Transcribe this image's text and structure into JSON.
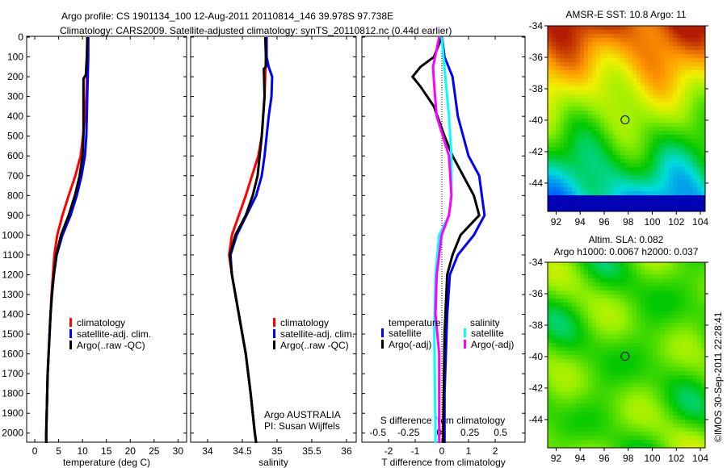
{
  "title_line1": "Argo profile: CS 1901134_100 12-Aug-2011 20110814_146 39.978S 97.738E",
  "title_line2": "Climatology: CARS2009. Satellite-adjusted climatology: synTS_20110812.nc (0.44d earlier)",
  "colors": {
    "climatology": "#ff0000",
    "satellite": "#0000ff",
    "argo": "#000000",
    "sal_satellite": "#00ffff",
    "sal_argo": "#ff00ff"
  },
  "chart_data": [
    {
      "type": "line",
      "name": "temperature",
      "xlabel": "temperature (deg C)",
      "xlim": [
        -1.7,
        31.8
      ],
      "ylim": [
        2050,
        0
      ],
      "xticks": [
        0,
        5,
        10,
        15,
        20,
        25,
        30
      ],
      "yticks": [
        0,
        100,
        200,
        300,
        400,
        500,
        600,
        700,
        800,
        900,
        1000,
        1100,
        1200,
        1300,
        1400,
        1500,
        1600,
        1700,
        1800,
        1900,
        2000
      ],
      "legend": [
        "climatology",
        "satellite-adj. clim.",
        "Argo(..raw -QC)"
      ],
      "series": [
        {
          "name": "climatology",
          "color": "climatology",
          "depth": [
            0,
            100,
            200,
            300,
            400,
            500,
            600,
            700,
            800,
            900,
            1000,
            1100,
            1200,
            1300,
            1400,
            1500,
            1600,
            1700,
            1800,
            1900,
            2000,
            2050
          ],
          "values": [
            11,
            11,
            10.9,
            10.8,
            10.5,
            10.1,
            9.6,
            8.5,
            7.1,
            5.8,
            4.7,
            4.1,
            3.8,
            3.5,
            3.3,
            3.1,
            2.9,
            2.7,
            2.6,
            2.5,
            2.4,
            2.4
          ]
        },
        {
          "name": "satellite-adj. clim.",
          "color": "satellite",
          "depth": [
            0,
            100,
            200,
            300,
            400,
            500,
            600,
            700,
            800,
            900,
            1000,
            1100,
            1200,
            1300,
            1400,
            1500,
            1600,
            1700,
            1800,
            1900,
            2000,
            2050
          ],
          "values": [
            11.2,
            11.2,
            11.1,
            11,
            10.9,
            10.8,
            10.5,
            9.8,
            8.8,
            7.5,
            5.8,
            4.6,
            4,
            3.6,
            3.3,
            3.1,
            2.9,
            2.7,
            2.6,
            2.5,
            2.4,
            2.4
          ]
        },
        {
          "name": "Argo(..raw -QC)",
          "color": "argo",
          "depth": [
            0,
            100,
            190,
            210,
            300,
            400,
            500,
            600,
            700,
            800,
            900,
            1000,
            1100,
            1200,
            1300,
            1400,
            1500,
            1600,
            1700,
            1800,
            1900,
            2000,
            2050
          ],
          "values": [
            11,
            10.9,
            10.7,
            10.2,
            10.2,
            10.2,
            10.2,
            10,
            9.4,
            8.4,
            7.1,
            5.5,
            4.5,
            4,
            3.6,
            3.3,
            3.1,
            2.9,
            2.7,
            2.6,
            2.5,
            2.4,
            2.4
          ]
        }
      ],
      "annotation": []
    },
    {
      "type": "line",
      "name": "salinity",
      "xlabel": "salinity",
      "xlim": [
        33.756,
        36.14
      ],
      "ylim": [
        2050,
        0
      ],
      "xticks": [
        34,
        34.5,
        35,
        35.5,
        36
      ],
      "legend": [
        "climatology",
        "satellite-adj. clim.",
        "Argo(..raw -QC)"
      ],
      "annotation": [
        "Argo AUSTRALIA",
        "PI: Susan Wijffels"
      ],
      "series": [
        {
          "name": "climatology",
          "color": "climatology",
          "depth": [
            0,
            100,
            200,
            300,
            400,
            500,
            600,
            700,
            800,
            900,
            1000,
            1100,
            1200,
            1400,
            1600,
            1800,
            2000,
            2050
          ],
          "values": [
            34.84,
            34.84,
            34.83,
            34.82,
            34.8,
            34.78,
            34.73,
            34.64,
            34.55,
            34.45,
            34.35,
            34.31,
            34.35,
            34.45,
            34.55,
            34.62,
            34.68,
            34.7
          ]
        },
        {
          "name": "satellite-adj. clim.",
          "color": "satellite",
          "depth": [
            0,
            100,
            150,
            200,
            300,
            400,
            500,
            600,
            700,
            800,
            900,
            1000,
            1100,
            1200,
            1400,
            1600,
            1800,
            2000,
            2050
          ],
          "values": [
            34.85,
            34.85,
            34.88,
            34.93,
            34.92,
            34.88,
            34.85,
            34.82,
            34.78,
            34.7,
            34.56,
            34.42,
            34.33,
            34.35,
            34.45,
            34.55,
            34.62,
            34.68,
            34.7
          ]
        },
        {
          "name": "Argo(..raw -QC)",
          "color": "argo",
          "depth": [
            0,
            100,
            150,
            160,
            300,
            400,
            500,
            600,
            700,
            800,
            900,
            1000,
            1100,
            1200,
            1400,
            1600,
            1800,
            2000,
            2050
          ],
          "values": [
            34.83,
            34.84,
            34.84,
            34.81,
            34.82,
            34.8,
            34.78,
            34.75,
            34.72,
            34.65,
            34.55,
            34.4,
            34.32,
            34.35,
            34.45,
            34.55,
            34.62,
            34.68,
            34.7
          ]
        }
      ]
    },
    {
      "type": "line",
      "name": "differences",
      "xlabel": "T difference from climatology",
      "xlim": [
        -3,
        3.12
      ],
      "ylim": [
        2050,
        0
      ],
      "xticks": [
        -2,
        -1,
        0,
        1,
        2
      ],
      "s_label": "S difference from climatology",
      "s_xlim": [
        -0.63,
        0.7
      ],
      "s_xticks": [
        "-0.5",
        "-0.25",
        "0",
        "0.25",
        "0.5"
      ],
      "legend": {
        "temperature": "temperature",
        "salinity": "salinity",
        "t_sat": "satellite",
        "t_argo": "Argo(-adj)",
        "s_sat": "satellite",
        "s_argo": "Argo(-adj)"
      },
      "series": [
        {
          "name": "T satellite",
          "color": "satellite",
          "axis": "T",
          "depth": [
            0,
            100,
            200,
            300,
            400,
            500,
            600,
            700,
            800,
            900,
            1000,
            1100,
            1200,
            1400,
            1600,
            1800,
            2000,
            2050
          ],
          "values": [
            0,
            0.1,
            0.4,
            0.5,
            0.6,
            0.8,
            1,
            1.4,
            1.5,
            1.6,
            1.2,
            0.6,
            0.3,
            0.2,
            0.15,
            0.1,
            0.1,
            0.1
          ]
        },
        {
          "name": "T Argo(-adj)",
          "color": "argo",
          "axis": "T",
          "depth": [
            0,
            100,
            150,
            200,
            250,
            350,
            500,
            600,
            700,
            800,
            900,
            1000,
            1100,
            1200,
            1500,
            2000,
            2050
          ],
          "values": [
            0,
            -0.3,
            -0.8,
            -1.1,
            -0.8,
            -0.3,
            0.1,
            0.4,
            0.8,
            1.2,
            1.4,
            0.7,
            0.4,
            0.2,
            0.1,
            0.05,
            0.05
          ]
        },
        {
          "name": "S satellite",
          "color": "sal_satellite",
          "axis": "S",
          "depth": [
            0,
            200,
            400,
            600,
            800,
            900,
            1000,
            1200,
            1500,
            2000,
            2050
          ],
          "values": [
            0.02,
            0.05,
            0.08,
            0.1,
            0.1,
            0.08,
            0,
            -0.03,
            -0.04,
            -0.03,
            -0.03
          ]
        },
        {
          "name": "S Argo(-adj)",
          "color": "sal_argo",
          "axis": "S",
          "depth": [
            0,
            150,
            250,
            400,
            600,
            800,
            900,
            1000,
            1200,
            1400,
            1600,
            2000,
            2050
          ],
          "values": [
            0,
            -0.05,
            -0.04,
            -0.02,
            0.08,
            0.1,
            0.08,
            0.02,
            -0.02,
            -0.03,
            0,
            0,
            0
          ]
        }
      ]
    },
    {
      "type": "heatmap",
      "name": "sst-map",
      "title": "AMSR-E SST: 10.8 Argo: 11",
      "xticks": [
        92,
        94,
        96,
        98,
        100,
        102,
        104
      ],
      "yticks": [
        -34,
        -36,
        -38,
        -40,
        -42,
        -44
      ],
      "xlim": [
        91.3,
        104.4
      ],
      "ylim": [
        -45.8,
        -34
      ],
      "marker": [
        97.738,
        -39.978
      ]
    },
    {
      "type": "heatmap",
      "name": "sla-map",
      "title_line1": "Altim. SLA: 0.082",
      "title_line2": "Argo h1000: 0.0067 h2000: 0.037",
      "xticks": [
        92,
        94,
        96,
        98,
        100,
        102,
        104
      ],
      "yticks": [
        -34,
        -36,
        -38,
        -40,
        -42,
        -44
      ],
      "xlim": [
        91.3,
        104.4
      ],
      "ylim": [
        -45.8,
        -34
      ],
      "marker": [
        97.738,
        -39.978
      ]
    }
  ],
  "credit": "©IMOS 30-Sep-2011 22:28:41"
}
